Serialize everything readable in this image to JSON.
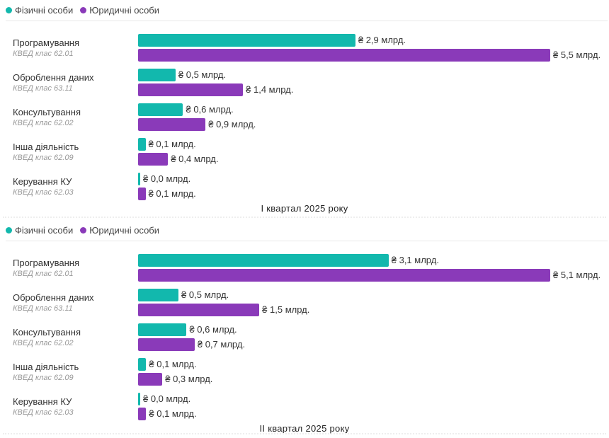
{
  "colors": {
    "individuals": "#12b8ad",
    "legal": "#8a3ab9"
  },
  "chart_data": [
    {
      "type": "bar",
      "orientation": "horizontal",
      "title": "I квартал 2025 року",
      "legend": [
        "Фізичні особи",
        "Юридичні особи"
      ],
      "value_unit": "млрд.",
      "value_prefix": "₴",
      "categories": [
        {
          "name": "Програмування",
          "code": "КВЕД клас 62.01"
        },
        {
          "name": "Оброблення даних",
          "code": "КВЕД клас 63.11"
        },
        {
          "name": "Консультування",
          "code": "КВЕД клас 62.02"
        },
        {
          "name": "Інша діяльність",
          "code": "КВЕД клас 62.09"
        },
        {
          "name": "Керування КУ",
          "code": "КВЕД клас 62.03"
        }
      ],
      "series": [
        {
          "name": "Фізичні особи",
          "values": [
            2.9,
            0.5,
            0.6,
            0.1,
            0.0
          ],
          "labels": [
            "₴ 2,9 млрд.",
            "₴ 0,5 млрд.",
            "₴ 0,6 млрд.",
            "₴ 0,1 млрд.",
            "₴ 0,0 млрд."
          ]
        },
        {
          "name": "Юридичні особи",
          "values": [
            5.5,
            1.4,
            0.9,
            0.4,
            0.1
          ],
          "labels": [
            "₴ 5,5 млрд.",
            "₴ 1,4 млрд.",
            "₴ 0,9 млрд.",
            "₴ 0,4 млрд.",
            "₴ 0,1 млрд."
          ]
        }
      ],
      "xlim": [
        0,
        5.5
      ]
    },
    {
      "type": "bar",
      "orientation": "horizontal",
      "title": "II квартал 2025 року",
      "legend": [
        "Фізичні особи",
        "Юридичні особи"
      ],
      "value_unit": "млрд.",
      "value_prefix": "₴",
      "categories": [
        {
          "name": "Програмування",
          "code": "КВЕД клас 62.01"
        },
        {
          "name": "Оброблення даних",
          "code": "КВЕД клас 63.11"
        },
        {
          "name": "Консультування",
          "code": "КВЕД клас 62.02"
        },
        {
          "name": "Інша діяльність",
          "code": "КВЕД клас 62.09"
        },
        {
          "name": "Керування КУ",
          "code": "КВЕД клас 62.03"
        }
      ],
      "series": [
        {
          "name": "Фізичні особи",
          "values": [
            3.1,
            0.5,
            0.6,
            0.1,
            0.0
          ],
          "labels": [
            "₴ 3,1 млрд.",
            "₴ 0,5 млрд.",
            "₴ 0,6 млрд.",
            "₴ 0,1 млрд.",
            "₴ 0,0 млрд."
          ]
        },
        {
          "name": "Юридичні особи",
          "values": [
            5.1,
            1.5,
            0.7,
            0.3,
            0.1
          ],
          "labels": [
            "₴ 5,1 млрд.",
            "₴ 1,5 млрд.",
            "₴ 0,7 млрд.",
            "₴ 0,3 млрд.",
            "₴ 0,1 млрд."
          ]
        }
      ],
      "xlim": [
        0,
        5.1
      ]
    }
  ]
}
